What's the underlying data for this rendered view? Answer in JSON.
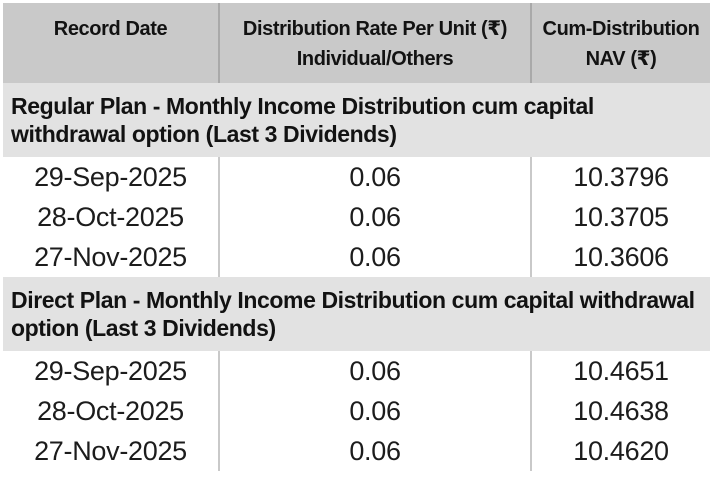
{
  "table": {
    "columns": [
      {
        "line1": "Record Date",
        "line2": ""
      },
      {
        "line1": "Distribution Rate Per Unit (₹)",
        "line2": "Individual/Others"
      },
      {
        "line1": "Cum-Distribution",
        "line2": "NAV (₹)"
      }
    ],
    "sections": [
      {
        "title": "Regular Plan - Monthly Income Distribution cum capital withdrawal option (Last 3 Dividends)",
        "rows": [
          {
            "record_date": "29-Sep-2025",
            "rate": "0.06",
            "nav": "10.3796"
          },
          {
            "record_date": "28-Oct-2025",
            "rate": "0.06",
            "nav": "10.3705"
          },
          {
            "record_date": "27-Nov-2025",
            "rate": "0.06",
            "nav": "10.3606"
          }
        ]
      },
      {
        "title": "Direct Plan - Monthly Income Distribution cum capital withdrawal option (Last 3 Dividends)",
        "rows": [
          {
            "record_date": "29-Sep-2025",
            "rate": "0.06",
            "nav": "10.4651"
          },
          {
            "record_date": "28-Oct-2025",
            "rate": "0.06",
            "nav": "10.4638"
          },
          {
            "record_date": "27-Nov-2025",
            "rate": "0.06",
            "nav": "10.4620"
          }
        ]
      }
    ]
  },
  "colors": {
    "header_bg": "#c9c9c9",
    "section_bg": "#e2e2e2",
    "header_divider": "#a9a9a9",
    "body_divider": "#c9c9c9",
    "text": "#121212",
    "page_bg": "#ffffff"
  }
}
